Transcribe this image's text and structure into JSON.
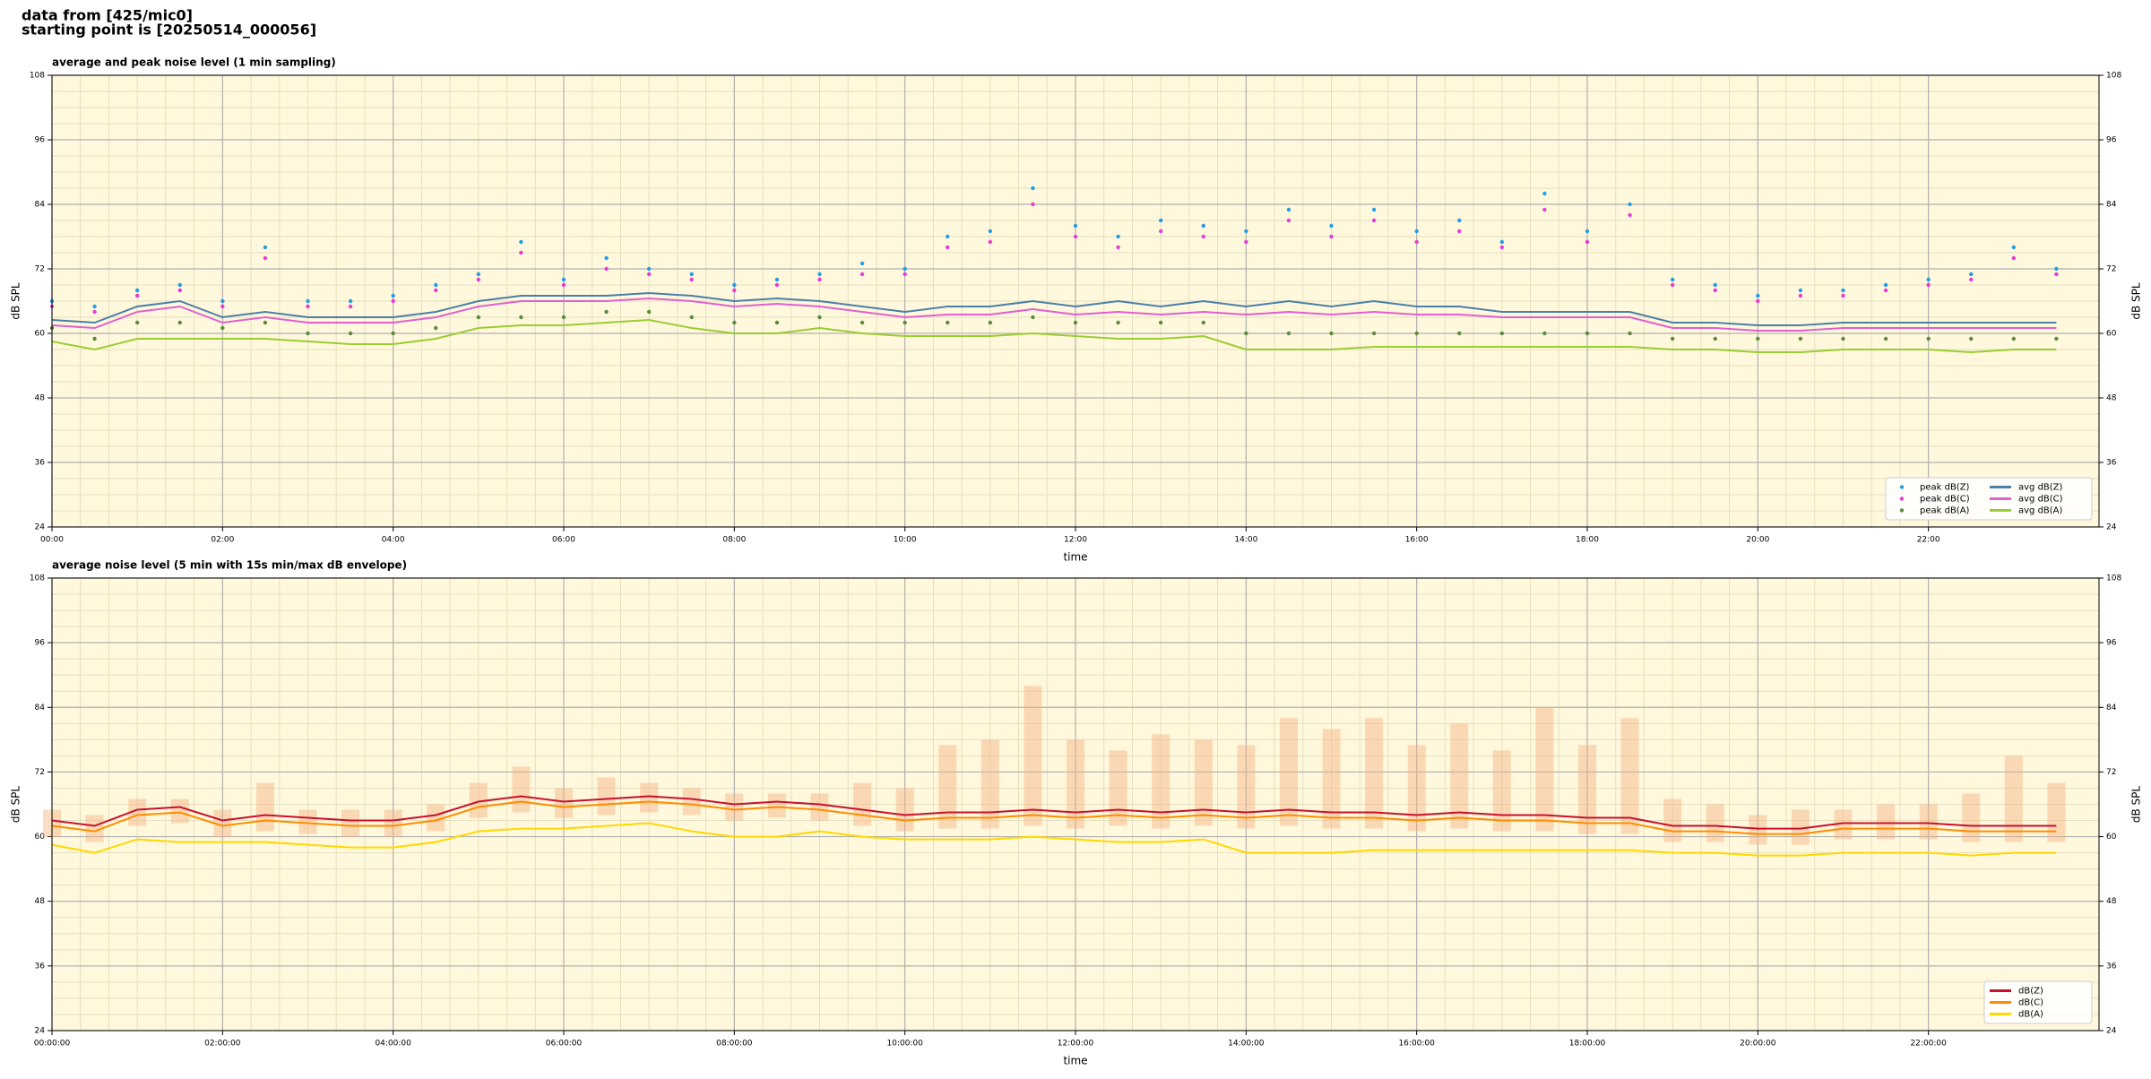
{
  "header": {
    "lines": [
      "data from [425/mic0]",
      "starting point is [20250514_000056]"
    ]
  },
  "chart_data": [
    {
      "type": "line",
      "title": "average and peak noise level (1 min sampling)",
      "xlabel": "time",
      "ylabel": "dB SPL",
      "xlim": [
        0,
        24
      ],
      "ylim": [
        24,
        108
      ],
      "yticks": [
        24,
        36,
        48,
        60,
        72,
        84,
        96,
        108
      ],
      "xticks": [
        {
          "value": 0,
          "label": "00:00"
        },
        {
          "value": 2,
          "label": "02:00"
        },
        {
          "value": 4,
          "label": "04:00"
        },
        {
          "value": 6,
          "label": "06:00"
        },
        {
          "value": 8,
          "label": "08:00"
        },
        {
          "value": 10,
          "label": "10:00"
        },
        {
          "value": 12,
          "label": "12:00"
        },
        {
          "value": 14,
          "label": "14:00"
        },
        {
          "value": 16,
          "label": "16:00"
        },
        {
          "value": 18,
          "label": "18:00"
        },
        {
          "value": 20,
          "label": "20:00"
        },
        {
          "value": 22,
          "label": "22:00"
        }
      ],
      "grid": true,
      "legend": "lower right",
      "legend_columns": 2,
      "x": [
        0,
        0.5,
        1,
        1.5,
        2,
        2.5,
        3,
        3.5,
        4,
        4.5,
        5,
        5.5,
        6,
        6.5,
        7,
        7.5,
        8,
        8.5,
        9,
        9.5,
        10,
        10.5,
        11,
        11.5,
        12,
        12.5,
        13,
        13.5,
        14,
        14.5,
        15,
        15.5,
        16,
        16.5,
        17,
        17.5,
        18,
        18.5,
        19,
        19.5,
        20,
        20.5,
        21,
        21.5,
        22,
        22.5,
        23,
        23.5
      ],
      "series": [
        {
          "name": "peak dB(Z)",
          "type": "scatter",
          "color": "#1f9ee8",
          "values": [
            66,
            65,
            68,
            69,
            66,
            76,
            66,
            66,
            67,
            69,
            71,
            77,
            70,
            74,
            72,
            71,
            69,
            70,
            71,
            73,
            72,
            78,
            79,
            87,
            80,
            78,
            81,
            80,
            79,
            83,
            80,
            83,
            79,
            81,
            77,
            86,
            79,
            84,
            70,
            69,
            67,
            68,
            68,
            69,
            70,
            71,
            76,
            72
          ]
        },
        {
          "name": "peak dB(C)",
          "type": "scatter",
          "color": "#e83ad6",
          "values": [
            65,
            64,
            67,
            68,
            65,
            74,
            65,
            65,
            66,
            68,
            70,
            75,
            69,
            72,
            71,
            70,
            68,
            69,
            70,
            71,
            71,
            76,
            77,
            84,
            78,
            76,
            79,
            78,
            77,
            81,
            78,
            81,
            77,
            79,
            76,
            83,
            77,
            82,
            69,
            68,
            66,
            67,
            67,
            68,
            69,
            70,
            74,
            71
          ]
        },
        {
          "name": "peak dB(A)",
          "type": "scatter",
          "color": "#5a8a3c",
          "values": [
            61,
            59,
            62,
            62,
            61,
            62,
            60,
            60,
            60,
            61,
            63,
            63,
            63,
            64,
            64,
            63,
            62,
            62,
            63,
            62,
            62,
            62,
            62,
            63,
            62,
            62,
            62,
            62,
            60,
            60,
            60,
            60,
            60,
            60,
            60,
            60,
            60,
            60,
            59,
            59,
            59,
            59,
            59,
            59,
            59,
            59,
            59,
            59
          ]
        },
        {
          "name": "avg dB(Z)",
          "type": "line",
          "color": "#4a7fa8",
          "values": [
            62.5,
            62,
            65,
            66,
            63,
            64,
            63,
            63,
            63,
            64,
            66,
            67,
            67,
            67,
            67.5,
            67,
            66,
            66.5,
            66,
            65,
            64,
            65,
            65,
            66,
            65,
            66,
            65,
            66,
            65,
            66,
            65,
            66,
            65,
            65,
            64,
            64,
            64,
            64,
            62,
            62,
            61.5,
            61.5,
            62,
            62,
            62,
            62,
            62,
            62
          ]
        },
        {
          "name": "avg dB(C)",
          "type": "line",
          "color": "#e060d0",
          "values": [
            61.5,
            61,
            64,
            65,
            62,
            63,
            62,
            62,
            62,
            63,
            65,
            66,
            66,
            66,
            66.5,
            66,
            65,
            65.5,
            65,
            64,
            63,
            63.5,
            63.5,
            64.5,
            63.5,
            64,
            63.5,
            64,
            63.5,
            64,
            63.5,
            64,
            63.5,
            63.5,
            63,
            63,
            63,
            63,
            61,
            61,
            60.5,
            60.5,
            61,
            61,
            61,
            61,
            61,
            61
          ]
        },
        {
          "name": "avg dB(A)",
          "type": "line",
          "color": "#9acd32",
          "values": [
            58.5,
            57,
            59,
            59,
            59,
            59,
            58.5,
            58,
            58,
            59,
            61,
            61.5,
            61.5,
            62,
            62.5,
            61,
            60,
            60,
            61,
            60,
            59.5,
            59.5,
            59.5,
            60,
            59.5,
            59,
            59,
            59.5,
            57,
            57,
            57,
            57.5,
            57.5,
            57.5,
            57.5,
            57.5,
            57.5,
            57.5,
            57,
            57,
            56.5,
            56.5,
            57,
            57,
            57,
            56.5,
            57,
            57
          ]
        }
      ]
    },
    {
      "type": "line",
      "title": "average noise level (5 min with 15s min/max dB envelope)",
      "xlabel": "time",
      "ylabel": "dB SPL",
      "xlim": [
        0,
        24
      ],
      "ylim": [
        24,
        108
      ],
      "yticks": [
        24,
        36,
        48,
        60,
        72,
        84,
        96,
        108
      ],
      "xticks": [
        {
          "value": 0,
          "label": "00:00:00"
        },
        {
          "value": 2,
          "label": "02:00:00"
        },
        {
          "value": 4,
          "label": "04:00:00"
        },
        {
          "value": 6,
          "label": "06:00:00"
        },
        {
          "value": 8,
          "label": "08:00:00"
        },
        {
          "value": 10,
          "label": "10:00:00"
        },
        {
          "value": 12,
          "label": "12:00:00"
        },
        {
          "value": 14,
          "label": "14:00:00"
        },
        {
          "value": 16,
          "label": "16:00:00"
        },
        {
          "value": 18,
          "label": "18:00:00"
        },
        {
          "value": 20,
          "label": "20:00:00"
        },
        {
          "value": 22,
          "label": "22:00:00"
        }
      ],
      "grid": true,
      "legend": "lower right",
      "legend_columns": 1,
      "x": [
        0,
        0.5,
        1,
        1.5,
        2,
        2.5,
        3,
        3.5,
        4,
        4.5,
        5,
        5.5,
        6,
        6.5,
        7,
        7.5,
        8,
        8.5,
        9,
        9.5,
        10,
        10.5,
        11,
        11.5,
        12,
        12.5,
        13,
        13.5,
        14,
        14.5,
        15,
        15.5,
        16,
        16.5,
        17,
        17.5,
        18,
        18.5,
        19,
        19.5,
        20,
        20.5,
        21,
        21.5,
        22,
        22.5,
        23,
        23.5
      ],
      "envelope": {
        "color": "#f4b183",
        "low": [
          60,
          59,
          62,
          62.5,
          60,
          61,
          60.5,
          60,
          60,
          61,
          63.5,
          64.5,
          63.5,
          64,
          64.5,
          64,
          63,
          63.5,
          63,
          62,
          61,
          61.5,
          61.5,
          62,
          61.5,
          62,
          61.5,
          62,
          61.5,
          62,
          61.5,
          61.5,
          61,
          61.5,
          61,
          61,
          60.5,
          60.5,
          59,
          59,
          58.5,
          58.5,
          59.5,
          59.5,
          59.5,
          59,
          59,
          59
        ],
        "high": [
          65,
          64,
          67,
          67,
          65,
          70,
          65,
          65,
          65,
          66,
          70,
          73,
          69,
          71,
          70,
          69,
          68,
          68,
          68,
          70,
          69,
          77,
          78,
          88,
          78,
          76,
          79,
          78,
          77,
          82,
          80,
          82,
          77,
          81,
          76,
          84,
          77,
          82,
          67,
          66,
          64,
          65,
          65,
          66,
          66,
          68,
          75,
          70
        ]
      },
      "series": [
        {
          "name": "dB(Z)",
          "type": "line",
          "color": "#c8102e",
          "values": [
            63,
            62,
            65,
            65.5,
            63,
            64,
            63.5,
            63,
            63,
            64,
            66.5,
            67.5,
            66.5,
            67,
            67.5,
            67,
            66,
            66.5,
            66,
            65,
            64,
            64.5,
            64.5,
            65,
            64.5,
            65,
            64.5,
            65,
            64.5,
            65,
            64.5,
            64.5,
            64,
            64.5,
            64,
            64,
            63.5,
            63.5,
            62,
            62,
            61.5,
            61.5,
            62.5,
            62.5,
            62.5,
            62,
            62,
            62
          ]
        },
        {
          "name": "dB(C)",
          "type": "line",
          "color": "#ff8c00",
          "values": [
            62,
            61,
            64,
            64.5,
            62,
            63,
            62.5,
            62,
            62,
            63,
            65.5,
            66.5,
            65.5,
            66,
            66.5,
            66,
            65,
            65.5,
            65,
            64,
            63,
            63.5,
            63.5,
            64,
            63.5,
            64,
            63.5,
            64,
            63.5,
            64,
            63.5,
            63.5,
            63,
            63.5,
            63,
            63,
            62.5,
            62.5,
            61,
            61,
            60.5,
            60.5,
            61.5,
            61.5,
            61.5,
            61,
            61,
            61
          ]
        },
        {
          "name": "dB(A)",
          "type": "line",
          "color": "#ffd700",
          "values": [
            58.5,
            57,
            59.5,
            59,
            59,
            59,
            58.5,
            58,
            58,
            59,
            61,
            61.5,
            61.5,
            62,
            62.5,
            61,
            60,
            60,
            61,
            60,
            59.5,
            59.5,
            59.5,
            60,
            59.5,
            59,
            59,
            59.5,
            57,
            57,
            57,
            57.5,
            57.5,
            57.5,
            57.5,
            57.5,
            57.5,
            57.5,
            57,
            57,
            56.5,
            56.5,
            57,
            57,
            57,
            56.5,
            57,
            57
          ]
        }
      ]
    }
  ]
}
